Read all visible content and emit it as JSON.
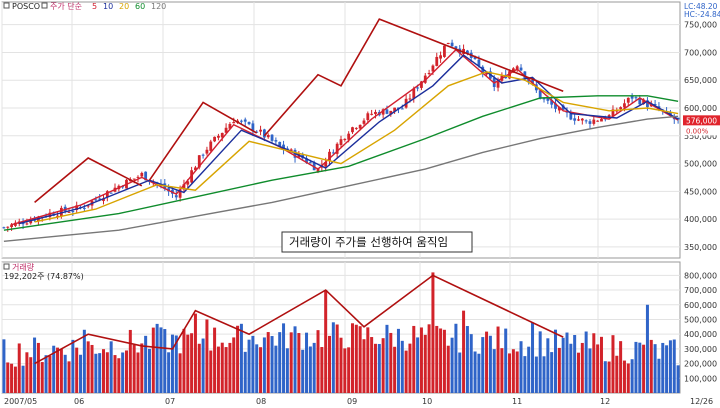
{
  "legend": {
    "ticker": "POSCO",
    "label": "주가 단순",
    "periods": [
      "5",
      "10",
      "20",
      "60",
      "120"
    ],
    "colors": [
      "#d22030",
      "#1c2f9c",
      "#d8a400",
      "#0f8c2c",
      "#777777"
    ]
  },
  "indicators": {
    "lc": "LC:48.20",
    "hc": "HC:-24.84",
    "price_badge": "576,000",
    "pct_badge": "0.00%"
  },
  "annotation": "거래량이 주가를 선행하여 움직임",
  "colors": {
    "up": "#d2232a",
    "down": "#2f64c8",
    "grid": "#e3e3e3",
    "trend": "#b01010"
  },
  "chart_data": [
    {
      "type": "candlestick",
      "title": "",
      "ylim": [
        330000,
        780000
      ],
      "y_ticks": [
        350000,
        400000,
        450000,
        500000,
        550000,
        600000,
        650000,
        700000,
        750000
      ],
      "y_tick_labels": [
        "350,000",
        "400,000",
        "450,000",
        "500,000",
        "550,000",
        "600,000",
        "650,000",
        "700,000",
        "750,000"
      ],
      "x_tick_labels": [
        "2007/05",
        "06",
        "07",
        "08",
        "09",
        "10",
        "11",
        "12",
        "12/26"
      ],
      "price_path": [
        [
          0,
          385000
        ],
        [
          12,
          410000
        ],
        [
          20,
          420000
        ],
        [
          30,
          460000
        ],
        [
          36,
          480000
        ],
        [
          42,
          455000
        ],
        [
          45,
          440000
        ],
        [
          52,
          520000
        ],
        [
          60,
          580000
        ],
        [
          66,
          560000
        ],
        [
          72,
          530000
        ],
        [
          78,
          510000
        ],
        [
          82,
          490000
        ],
        [
          90,
          560000
        ],
        [
          96,
          590000
        ],
        [
          104,
          600000
        ],
        [
          110,
          660000
        ],
        [
          116,
          720000
        ],
        [
          122,
          690000
        ],
        [
          128,
          640000
        ],
        [
          134,
          680000
        ],
        [
          140,
          620000
        ],
        [
          146,
          590000
        ],
        [
          152,
          575000
        ],
        [
          158,
          585000
        ],
        [
          164,
          620000
        ],
        [
          170,
          600000
        ],
        [
          176,
          576000
        ]
      ],
      "moving_averages": [
        {
          "name": "5",
          "color": "#d22030",
          "points": [
            [
              2,
              390000
            ],
            [
              20,
              425000
            ],
            [
              36,
              475000
            ],
            [
              45,
              445000
            ],
            [
              60,
              570000
            ],
            [
              72,
              530000
            ],
            [
              82,
              490000
            ],
            [
              96,
              580000
            ],
            [
              110,
              650000
            ],
            [
              118,
              705000
            ],
            [
              128,
              645000
            ],
            [
              134,
              670000
            ],
            [
              146,
              595000
            ],
            [
              158,
              580000
            ],
            [
              166,
              618000
            ],
            [
              176,
              578000
            ]
          ]
        },
        {
          "name": "10",
          "color": "#1c2f9c",
          "points": [
            [
              4,
              392000
            ],
            [
              20,
              420000
            ],
            [
              38,
              470000
            ],
            [
              47,
              448000
            ],
            [
              62,
              560000
            ],
            [
              74,
              525000
            ],
            [
              84,
              492000
            ],
            [
              98,
              575000
            ],
            [
              112,
              640000
            ],
            [
              120,
              695000
            ],
            [
              130,
              645000
            ],
            [
              138,
              655000
            ],
            [
              148,
              590000
            ],
            [
              160,
              582000
            ],
            [
              168,
              612000
            ],
            [
              176,
              580000
            ]
          ]
        },
        {
          "name": "20",
          "color": "#d8a400",
          "points": [
            [
              8,
              395000
            ],
            [
              24,
              418000
            ],
            [
              40,
              462000
            ],
            [
              50,
              452000
            ],
            [
              64,
              540000
            ],
            [
              76,
              520000
            ],
            [
              88,
              500000
            ],
            [
              102,
              560000
            ],
            [
              116,
              640000
            ],
            [
              126,
              665000
            ],
            [
              136,
              650000
            ],
            [
              146,
              610000
            ],
            [
              158,
              595000
            ],
            [
              168,
              600000
            ],
            [
              176,
              590000
            ]
          ]
        },
        {
          "name": "60",
          "color": "#0f8c2c",
          "points": [
            [
              0,
              380000
            ],
            [
              30,
              410000
            ],
            [
              50,
              440000
            ],
            [
              70,
              470000
            ],
            [
              90,
              495000
            ],
            [
              110,
              545000
            ],
            [
              125,
              585000
            ],
            [
              140,
              618000
            ],
            [
              155,
              622000
            ],
            [
              168,
              622000
            ],
            [
              176,
              612000
            ]
          ]
        },
        {
          "name": "120",
          "color": "#777777",
          "points": [
            [
              0,
              360000
            ],
            [
              30,
              380000
            ],
            [
              50,
              405000
            ],
            [
              70,
              430000
            ],
            [
              90,
              460000
            ],
            [
              110,
              490000
            ],
            [
              125,
              520000
            ],
            [
              140,
              545000
            ],
            [
              155,
              565000
            ],
            [
              168,
              580000
            ],
            [
              176,
              585000
            ]
          ]
        }
      ],
      "trendlines": [
        [
          [
            8,
            430000
          ],
          [
            22,
            510000
          ],
          [
            36,
            460000
          ]
        ],
        [
          [
            38,
            470000
          ],
          [
            52,
            610000
          ],
          [
            66,
            555000
          ]
        ],
        [
          [
            68,
            550000
          ],
          [
            82,
            660000
          ],
          [
            88,
            640000
          ],
          [
            98,
            760000
          ],
          [
            146,
            630000
          ]
        ]
      ]
    },
    {
      "type": "bar",
      "title": "",
      "label": "거래량",
      "readout": "192,202주 (74.87%)",
      "ylim": [
        0,
        850000
      ],
      "y_ticks": [
        100000,
        200000,
        300000,
        400000,
        500000,
        600000,
        700000,
        800000
      ],
      "y_tick_labels": [
        "100,000",
        "200,000",
        "300,000",
        "400,000",
        "500,000",
        "600,000",
        "700,000",
        "800,000"
      ],
      "trendlines": [
        [
          [
            8,
            200000
          ],
          [
            22,
            400000
          ],
          [
            36,
            320000
          ],
          [
            44,
            300000
          ],
          [
            50,
            560000
          ],
          [
            64,
            400000
          ],
          [
            84,
            700000
          ],
          [
            94,
            450000
          ],
          [
            112,
            800000
          ],
          [
            146,
            380000
          ]
        ]
      ]
    }
  ]
}
